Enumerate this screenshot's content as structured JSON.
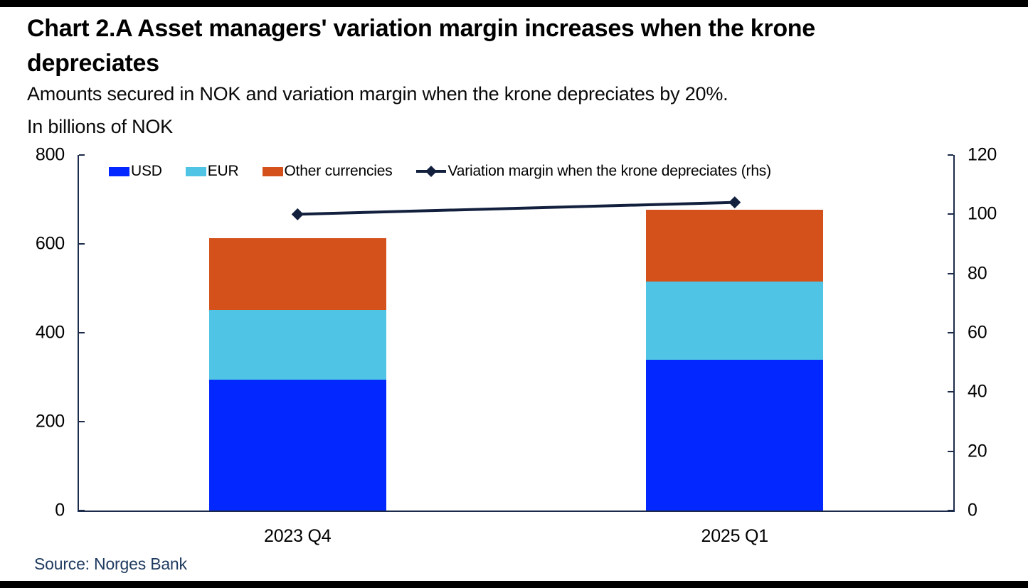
{
  "header": {
    "title": "Chart 2.A Asset managers' variation margin increases when the krone depreciates",
    "subtitle": "Amounts secured in NOK and variation margin when the krone depreciates by 20%.",
    "units_label": "In billions of NOK"
  },
  "footer": {
    "source": "Source: Norges Bank"
  },
  "colors": {
    "axis": "#1c2b4a",
    "tick_text": "#000000",
    "source_text": "#1e3a5f",
    "frame_strips": "#000000",
    "usd_blue": "#0228ff",
    "eur_light_blue": "#4fc4e4",
    "other_orange": "#d4511b",
    "line_navy": "#12203e"
  },
  "chart_data": {
    "type": "bar",
    "stacked": true,
    "title": "Chart 2.A Asset managers' variation margin increases when the krone depreciates",
    "subtitle": "Amounts secured in NOK and variation margin when the krone depreciates by 20%.",
    "unit": "In billions of NOK",
    "categories": [
      "2023 Q4",
      "2025 Q1"
    ],
    "series": [
      {
        "name": "USD",
        "color": "#0228ff",
        "values": [
          294,
          339
        ]
      },
      {
        "name": "EUR",
        "color": "#4fc4e4",
        "values": [
          158,
          176
        ]
      },
      {
        "name": "Other currencies",
        "color": "#d4511b",
        "values": [
          161,
          162
        ]
      }
    ],
    "stack_totals": [
      613,
      677
    ],
    "line_series": {
      "name": "Variation margin when the krone depreciates (rhs)",
      "color": "#12203e",
      "axis": "right",
      "values": [
        100,
        104
      ]
    },
    "left_axis": {
      "range": [
        0,
        800
      ],
      "ticks": [
        0,
        200,
        400,
        600,
        800
      ]
    },
    "right_axis": {
      "range": [
        0,
        120
      ],
      "ticks": [
        0,
        20,
        40,
        60,
        80,
        100,
        120
      ]
    },
    "grid": false,
    "legend_position": "top-left-inside"
  }
}
